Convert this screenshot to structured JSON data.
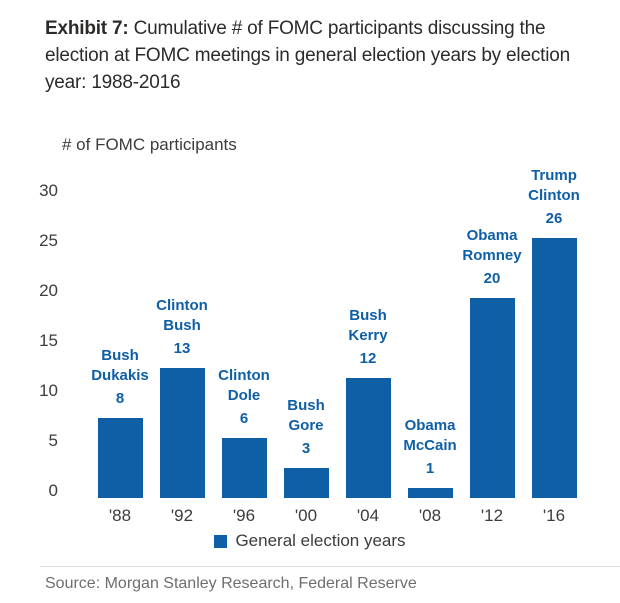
{
  "header": {
    "exhibit_label": "Exhibit 7:",
    "title_rest": "Cumulative # of FOMC participants discussing the election at FOMC meetings in general election years by election year: 1988-2016"
  },
  "chart_data": {
    "type": "bar",
    "title": "Exhibit 7: Cumulative # of FOMC participants discussing the election at FOMC meetings in general election years by election year: 1988-2016",
    "ylabel": "# of FOMC participants",
    "xlabel": "",
    "ylim": [
      0,
      30
    ],
    "yticks": [
      0,
      5,
      10,
      15,
      20,
      25,
      30
    ],
    "grid": false,
    "legend": "General election years",
    "legend_position": "bottom",
    "bar_color": "#0f5fa6",
    "text_color": "#3d3c3b",
    "categories": [
      "'88",
      "'92",
      "'96",
      "'00",
      "'04",
      "'08",
      "'12",
      "'16"
    ],
    "values": [
      8,
      13,
      6,
      3,
      12,
      1,
      20,
      26
    ],
    "bars": [
      {
        "year": "'88",
        "candidates": [
          "Bush",
          "Dukakis"
        ],
        "value": 8
      },
      {
        "year": "'92",
        "candidates": [
          "Clinton",
          "Bush"
        ],
        "value": 13
      },
      {
        "year": "'96",
        "candidates": [
          "Clinton",
          "Dole"
        ],
        "value": 6
      },
      {
        "year": "'00",
        "candidates": [
          "Bush",
          "Gore"
        ],
        "value": 3
      },
      {
        "year": "'04",
        "candidates": [
          "Bush",
          "Kerry"
        ],
        "value": 12
      },
      {
        "year": "'08",
        "candidates": [
          "Obama",
          "McCain"
        ],
        "value": 1
      },
      {
        "year": "'12",
        "candidates": [
          "Obama",
          "Romney"
        ],
        "value": 20
      },
      {
        "year": "'16",
        "candidates": [
          "Trump",
          "Clinton"
        ],
        "value": 26
      }
    ]
  },
  "footer": {
    "source": "Source: Morgan Stanley Research, Federal Reserve"
  }
}
